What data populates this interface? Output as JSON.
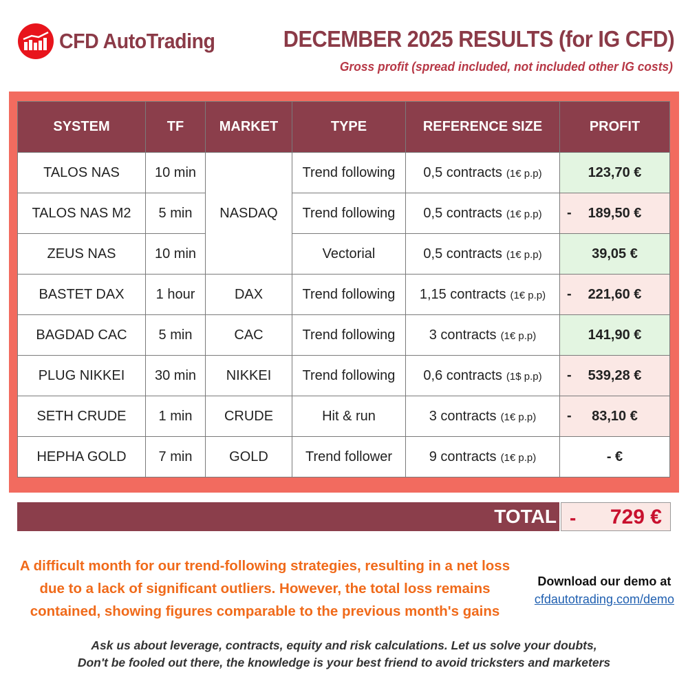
{
  "brand": {
    "name": "CFD AutoTrading",
    "logo_icon": "chart-bars-logo-icon",
    "logo_color": "#e8141c"
  },
  "header": {
    "title": "DECEMBER 2025 RESULTS (for IG CFD)",
    "subtitle": "Gross profit (spread included, not included other IG costs)"
  },
  "table": {
    "columns": [
      "SYSTEM",
      "TF",
      "MARKET",
      "TYPE",
      "REFERENCE SIZE",
      "PROFIT"
    ],
    "rows": [
      {
        "system": "TALOS NAS",
        "tf": "10 min",
        "market": "NASDAQ",
        "type": "Trend following",
        "size": "0,5 contracts",
        "pp": "(1€ p.p)",
        "sign": "",
        "profit": "123,70 €",
        "status": "positive"
      },
      {
        "system": "TALOS NAS M2",
        "tf": "5 min",
        "market": "",
        "type": "Trend following",
        "size": "0,5 contracts",
        "pp": "(1€ p.p)",
        "sign": "-",
        "profit": "189,50 €",
        "status": "negative"
      },
      {
        "system": "ZEUS NAS",
        "tf": "10 min",
        "market": "",
        "type": "Vectorial",
        "size": "0,5 contracts",
        "pp": "(1€ p.p)",
        "sign": "",
        "profit": "39,05 €",
        "status": "positive"
      },
      {
        "system": "BASTET DAX",
        "tf": "1 hour",
        "market": "DAX",
        "type": "Trend following",
        "size": "1,15 contracts",
        "pp": "(1€ p.p)",
        "sign": "-",
        "profit": "221,60 €",
        "status": "negative"
      },
      {
        "system": "BAGDAD CAC",
        "tf": "5 min",
        "market": "CAC",
        "type": "Trend following",
        "size": "3 contracts",
        "pp": "(1€ p.p)",
        "sign": "",
        "profit": "141,90 €",
        "status": "positive"
      },
      {
        "system": "PLUG NIKKEI",
        "tf": "30 min",
        "market": "NIKKEI",
        "type": "Trend following",
        "size": "0,6 contracts",
        "pp": "(1$ p.p)",
        "sign": "-",
        "profit": "539,28 €",
        "status": "negative"
      },
      {
        "system": "SETH CRUDE",
        "tf": "1 min",
        "market": "CRUDE",
        "type": "Hit & run",
        "size": "3 contracts",
        "pp": "(1€ p.p)",
        "sign": "-",
        "profit": "83,10 €",
        "status": "negative"
      },
      {
        "system": "HEPHA GOLD",
        "tf": "7 min",
        "market": "GOLD",
        "type": "Trend follower",
        "size": "9 contracts",
        "pp": "(1€ p.p)",
        "sign": "",
        "profit": "-   €",
        "status": "zero"
      }
    ]
  },
  "total": {
    "label": "TOTAL",
    "sign": "-",
    "value": "729 €"
  },
  "comment": "A difficult month for our trend-following strategies, resulting in a net loss due to a lack of significant outliers. However, the total loss remains contained, showing figures comparable to the previous month's gains",
  "demo": {
    "text": "Download our demo at",
    "link": "cfdautotrading.com/demo"
  },
  "footer": {
    "line1": "Ask us about leverage, contracts, equity and risk calculations. Let us solve your doubts,",
    "line2": "Don't be fooled out there, the knowledge is your best friend to avoid tricksters and marketers"
  },
  "colors": {
    "header_bg": "#8b3e4b",
    "frame": "#f26b5f",
    "positive_bg": "#e3f5e1",
    "negative_bg": "#fbe8e5",
    "comment": "#f06a1a"
  }
}
